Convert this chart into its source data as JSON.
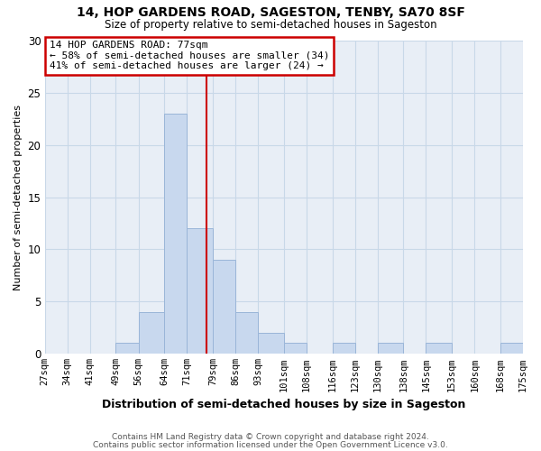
{
  "title": "14, HOP GARDENS ROAD, SAGESTON, TENBY, SA70 8SF",
  "subtitle": "Size of property relative to semi-detached houses in Sageston",
  "xlabel": "Distribution of semi-detached houses by size in Sageston",
  "ylabel": "Number of semi-detached properties",
  "bin_edges": [
    27,
    34,
    41,
    49,
    56,
    64,
    71,
    79,
    86,
    93,
    101,
    108,
    116,
    123,
    130,
    138,
    145,
    153,
    160,
    168,
    175
  ],
  "bin_counts": [
    0,
    0,
    0,
    1,
    4,
    23,
    12,
    9,
    4,
    2,
    1,
    0,
    1,
    0,
    1,
    0,
    1,
    0,
    0,
    1
  ],
  "tick_labels": [
    "27sqm",
    "34sqm",
    "41sqm",
    "49sqm",
    "56sqm",
    "64sqm",
    "71sqm",
    "79sqm",
    "86sqm",
    "93sqm",
    "101sqm",
    "108sqm",
    "116sqm",
    "123sqm",
    "130sqm",
    "138sqm",
    "145sqm",
    "153sqm",
    "160sqm",
    "168sqm",
    "175sqm"
  ],
  "bar_color": "#c8d8ee",
  "bar_edge_color": "#9ab5d8",
  "grid_color": "#c8d8e8",
  "plot_bg_color": "#e8eef6",
  "fig_bg_color": "#ffffff",
  "property_line_x": 77,
  "property_line_color": "#cc0000",
  "annotation_text": "14 HOP GARDENS ROAD: 77sqm\n← 58% of semi-detached houses are smaller (34)\n41% of semi-detached houses are larger (24) →",
  "annotation_box_color": "#cc0000",
  "ylim": [
    0,
    30
  ],
  "footer_line1": "Contains HM Land Registry data © Crown copyright and database right 2024.",
  "footer_line2": "Contains public sector information licensed under the Open Government Licence v3.0."
}
